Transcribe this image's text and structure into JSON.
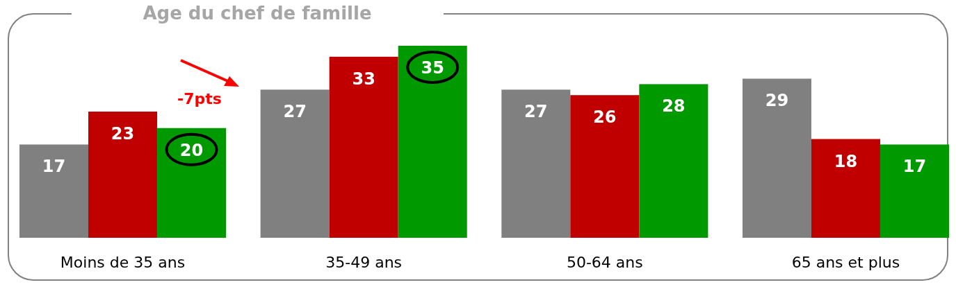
{
  "chart_data": {
    "type": "bar",
    "title": "Age du chef de famille",
    "categories": [
      "Moins de 35 ans",
      "35-49 ans",
      "50-64 ans",
      "65 ans et plus"
    ],
    "series": [
      {
        "color": "#808080",
        "values": [
          17,
          27,
          27,
          29
        ]
      },
      {
        "color": "#c00000",
        "values": [
          23,
          33,
          26,
          18
        ]
      },
      {
        "color": "#009900",
        "values": [
          20,
          35,
          28,
          17
        ]
      }
    ],
    "data_labels": true,
    "annotations": [
      "-7pts"
    ]
  }
}
